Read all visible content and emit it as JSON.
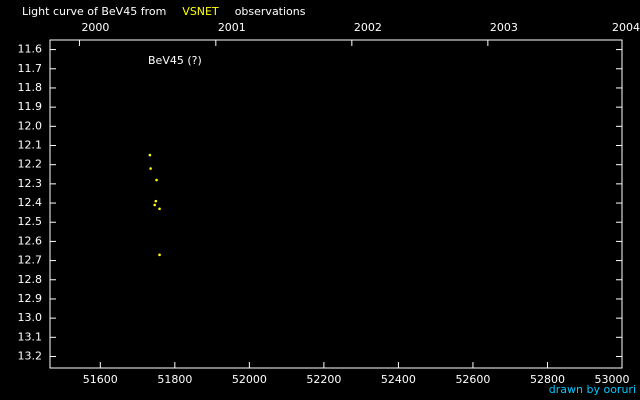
{
  "chart_data": {
    "type": "scatter",
    "title_parts": [
      {
        "text": "Light curve of BeV45 from",
        "color": "#ffffff"
      },
      {
        "text": "VSNET",
        "color": "#ffff00"
      },
      {
        "text": "observations",
        "color": "#ffffff"
      }
    ],
    "annotation": "BeV45 (?)",
    "credit": "drawn by ooruri",
    "credit_color": "#00c8ff",
    "series": [
      {
        "color": "#ffff00",
        "x": [
          51733,
          51735,
          51751,
          51749,
          51746,
          51759,
          51759
        ],
        "values": [
          12.15,
          12.22,
          12.28,
          12.39,
          12.41,
          12.43,
          12.67
        ]
      }
    ],
    "xlim": [
      51465,
      53000
    ],
    "xticks": [
      51600,
      51800,
      52000,
      52200,
      52400,
      52600,
      52800,
      53000
    ],
    "top_ticks": [
      {
        "value": 51544,
        "label": "2000"
      },
      {
        "value": 51910,
        "label": "2001"
      },
      {
        "value": 52275,
        "label": "2002"
      },
      {
        "value": 52640,
        "label": "2003"
      },
      {
        "value": 53005,
        "label": "2004"
      }
    ],
    "ylim": [
      11.55,
      13.26
    ],
    "y_inverted": true,
    "yticks": [
      11.6,
      11.7,
      11.8,
      11.9,
      {
        "value": 12,
        "label": "12.0"
      },
      12.1,
      12.2,
      12.3,
      12.4,
      12.5,
      12.6,
      12.7,
      12.8,
      12.9,
      {
        "value": 13,
        "label": "13.0"
      },
      13.1,
      13.2
    ]
  }
}
